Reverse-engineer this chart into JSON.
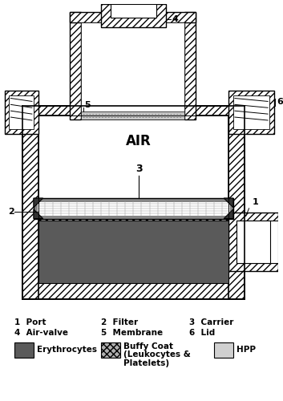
{
  "bg_color": "#ffffff",
  "erythrocytes_color": "#5a5a5a",
  "buffy_coat_color": "#a8a8a8",
  "hpp_color": "#d0d0d0",
  "wall_color": "#ffffff",
  "hatch_pattern": "////",
  "air_label": "AIR",
  "label_3": "3",
  "label_2": "2",
  "label_1": "1",
  "label_4": "4",
  "label_5": "5",
  "label_6": "6",
  "legend_row1_left": "1  Port",
  "legend_row1_mid": "2  Filter",
  "legend_row1_right": "3  Carrier",
  "legend_row2_left": "4  Air-valve",
  "legend_row2_mid": "5  Membrane",
  "legend_row2_right": "6  Lid",
  "legend_ery": "Erythrocytes",
  "legend_buffy1": "Buffy Coat",
  "legend_buffy2": "(Leukocytes &",
  "legend_buffy3": "Platelets)",
  "legend_hpp": "HPP"
}
